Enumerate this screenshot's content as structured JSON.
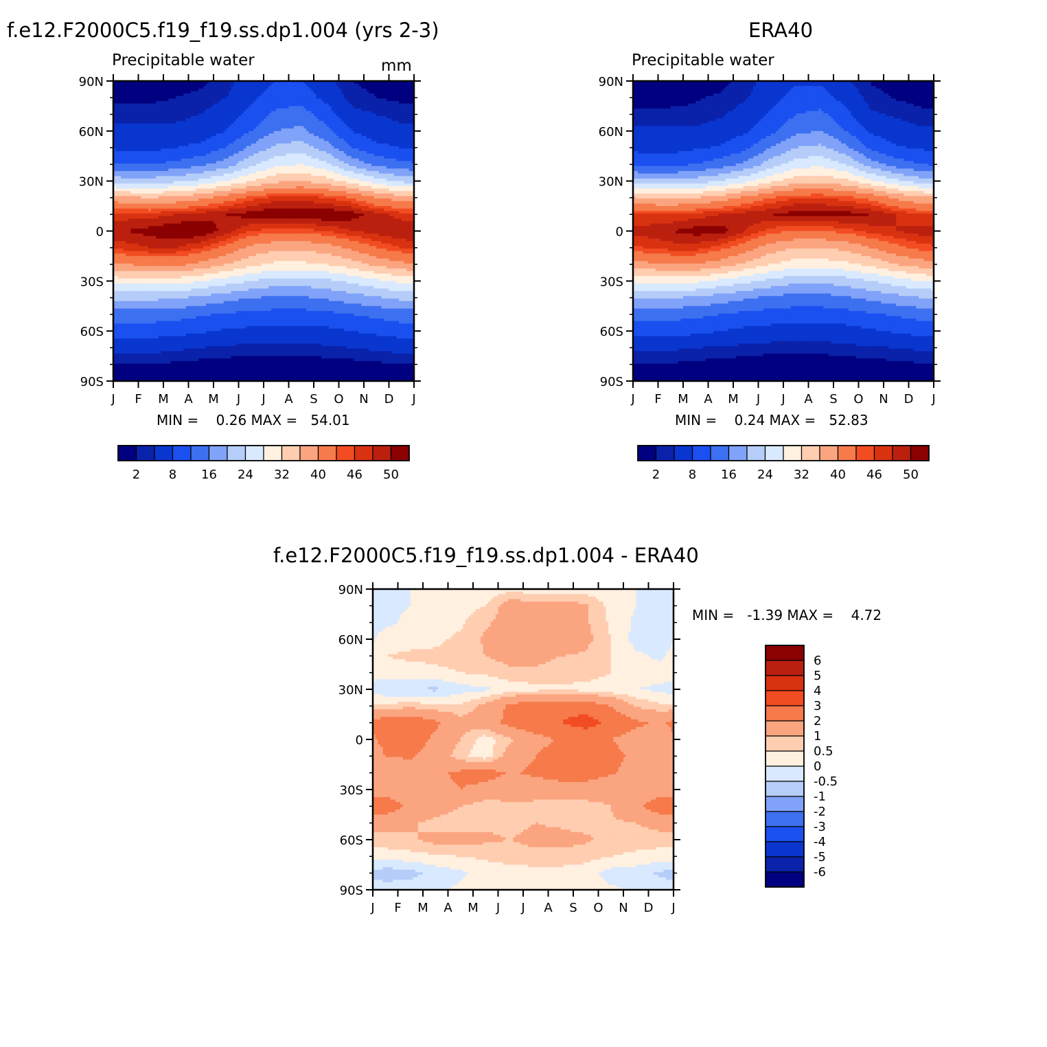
{
  "panel_model": {
    "title": "f.e12.F2000C5.f19_f19.ss.dp1.004 (yrs 2-3)",
    "left_string": "Precipitable water",
    "right_string": "mm",
    "stats": "MIN =    0.26 MAX =   54.01"
  },
  "panel_obs": {
    "title": "ERA40",
    "left_string": "Precipitable water",
    "right_string": "",
    "stats": "MIN =    0.24 MAX =   52.83"
  },
  "panel_diff": {
    "title": "f.e12.F2000C5.f19_f19.ss.dp1.004 - ERA40",
    "stats": "MIN =   -1.39 MAX =    4.72"
  },
  "colors": {
    "abs_levels": [
      "#000080",
      "#0a22aa",
      "#0a36d0",
      "#1a50f0",
      "#3d70f0",
      "#80a2f8",
      "#b5cdf8",
      "#d9e9ff",
      "#fff0e0",
      "#ffcdb0",
      "#fba580",
      "#f67a4a",
      "#f24c22",
      "#d93210",
      "#bb200f",
      "#8b0000"
    ],
    "diff_levels": [
      "#000080",
      "#0a22aa",
      "#0a36d0",
      "#1a50f0",
      "#3d70f0",
      "#80a2f8",
      "#b5cdf8",
      "#d9e9ff",
      "#fff0e0",
      "#ffcdb0",
      "#fba580",
      "#f67a4a",
      "#f24c22",
      "#d93210",
      "#bb200f",
      "#8b0000"
    ]
  },
  "chart_data": [
    {
      "type": "heatmap",
      "panel": "model",
      "title": "f.e12.F2000C5.f19_f19.ss.dp1.004 (yrs 2-3)",
      "x_ticks": [
        "J",
        "F",
        "M",
        "A",
        "M",
        "J",
        "J",
        "A",
        "S",
        "O",
        "N",
        "D",
        "J"
      ],
      "y_ticks": [
        "90N",
        "60N",
        "30N",
        "0",
        "30S",
        "60S",
        "90S"
      ],
      "ylim": [
        -90,
        90
      ],
      "min": 0.26,
      "max": 54.01,
      "colorbar_labels": [
        "2",
        "8",
        "16",
        "24",
        "32",
        "40",
        "46",
        "50"
      ],
      "contour_levels": [
        2,
        4,
        8,
        12,
        16,
        20,
        24,
        28,
        32,
        36,
        40,
        44,
        46,
        48,
        50
      ],
      "lat": [
        -90,
        -80,
        -70,
        -60,
        -50,
        -40,
        -30,
        -20,
        -10,
        0,
        10,
        20,
        30,
        40,
        50,
        60,
        70,
        80,
        90
      ],
      "months": [
        "Jan",
        "Feb",
        "Mar",
        "Apr",
        "May",
        "Jun",
        "Jul",
        "Aug",
        "Sep",
        "Oct",
        "Nov",
        "Dec"
      ],
      "values_by_lat": [
        [
          0.5,
          0.5,
          0.5,
          0.5,
          0.4,
          0.3,
          0.3,
          0.3,
          0.4,
          0.5,
          0.5,
          0.5
        ],
        [
          2,
          2,
          1.5,
          1.2,
          1,
          0.8,
          0.8,
          0.8,
          1,
          1.2,
          1.5,
          2
        ],
        [
          5,
          5,
          4.5,
          4,
          3.5,
          3,
          3,
          3,
          3.5,
          4,
          4.5,
          5
        ],
        [
          10,
          10,
          9.5,
          8.5,
          7.5,
          7,
          6.5,
          6.5,
          7,
          8,
          9,
          10
        ],
        [
          14,
          14,
          13.5,
          12.5,
          11.5,
          11,
          10.5,
          10.5,
          11,
          12,
          13,
          14
        ],
        [
          21,
          21,
          20.5,
          19,
          17.5,
          16,
          15.5,
          15.5,
          16.5,
          18,
          19.5,
          21
        ],
        [
          30,
          30,
          30,
          28,
          26,
          24,
          22,
          22,
          23,
          25,
          27,
          29
        ],
        [
          40,
          41,
          41,
          39,
          36,
          33,
          31,
          31,
          32,
          34,
          37,
          39
        ],
        [
          47,
          48,
          48,
          46,
          43,
          39,
          37,
          37,
          38,
          41,
          44,
          46
        ],
        [
          50,
          51,
          52,
          52,
          49,
          46,
          45,
          45,
          46,
          48,
          49,
          50
        ],
        [
          47,
          47,
          48,
          49,
          50,
          51,
          52,
          52,
          52,
          51,
          49,
          47
        ],
        [
          37,
          36,
          37,
          39,
          42,
          45,
          47,
          47,
          46,
          44,
          40,
          38
        ],
        [
          22,
          22,
          23,
          25,
          28,
          32,
          35,
          36,
          34,
          30,
          26,
          23
        ],
        [
          12,
          12,
          13,
          15,
          18,
          23,
          27,
          28,
          25,
          19,
          15,
          13
        ],
        [
          7,
          7,
          8,
          9,
          12,
          17,
          21,
          22,
          18,
          12,
          9,
          8
        ],
        [
          5,
          5,
          5,
          6,
          8,
          12,
          16,
          17,
          13,
          8,
          6,
          5
        ],
        [
          3,
          3,
          3,
          4,
          6,
          9,
          13,
          14,
          10,
          5,
          4,
          3
        ],
        [
          1.5,
          1.5,
          2,
          2.5,
          4,
          7,
          10,
          10,
          7,
          3,
          2,
          1.5
        ],
        [
          1,
          1,
          1.2,
          1.5,
          3,
          6,
          8,
          8,
          5,
          2,
          1.2,
          1
        ]
      ]
    },
    {
      "type": "heatmap",
      "panel": "obs",
      "title": "ERA40",
      "x_ticks": [
        "J",
        "F",
        "M",
        "A",
        "M",
        "J",
        "J",
        "A",
        "S",
        "O",
        "N",
        "D",
        "J"
      ],
      "y_ticks": [
        "90N",
        "60N",
        "30N",
        "0",
        "30S",
        "60S",
        "90S"
      ],
      "ylim": [
        -90,
        90
      ],
      "min": 0.24,
      "max": 52.83,
      "colorbar_labels": [
        "2",
        "8",
        "16",
        "24",
        "32",
        "40",
        "46",
        "50"
      ],
      "contour_levels": [
        2,
        4,
        8,
        12,
        16,
        20,
        24,
        28,
        32,
        36,
        40,
        44,
        46,
        48,
        50
      ],
      "lat": [
        -90,
        -80,
        -70,
        -60,
        -50,
        -40,
        -30,
        -20,
        -10,
        0,
        10,
        20,
        30,
        40,
        50,
        60,
        70,
        80,
        90
      ],
      "months": [
        "Jan",
        "Feb",
        "Mar",
        "Apr",
        "May",
        "Jun",
        "Jul",
        "Aug",
        "Sep",
        "Oct",
        "Nov",
        "Dec"
      ],
      "values_by_lat": [
        [
          0.4,
          0.4,
          0.4,
          0.4,
          0.3,
          0.3,
          0.3,
          0.3,
          0.3,
          0.4,
          0.4,
          0.4
        ],
        [
          1.8,
          1.8,
          1.4,
          1.1,
          0.9,
          0.7,
          0.7,
          0.7,
          0.9,
          1.1,
          1.4,
          1.8
        ],
        [
          4.5,
          4.5,
          4,
          3.6,
          3.2,
          2.8,
          2.8,
          2.8,
          3.2,
          3.6,
          4,
          4.5
        ],
        [
          9.5,
          9.5,
          9,
          8,
          7,
          6.5,
          6,
          6,
          6.5,
          7.5,
          8.5,
          9.5
        ],
        [
          13.5,
          13.5,
          13,
          12,
          11,
          10.5,
          10,
          10,
          10.5,
          11.5,
          12.5,
          13.5
        ],
        [
          20,
          20,
          19.5,
          18,
          16.5,
          15,
          14.5,
          14.5,
          15.5,
          17,
          18.5,
          20
        ],
        [
          29,
          29,
          29,
          27,
          25,
          23,
          21,
          21,
          22,
          24,
          26,
          28
        ],
        [
          39,
          40,
          40,
          38,
          35,
          32,
          30,
          30,
          31,
          33,
          36,
          38
        ],
        [
          46,
          47,
          47,
          45,
          42,
          38,
          36,
          36,
          37,
          40,
          43,
          45
        ],
        [
          49,
          50,
          51,
          51,
          48,
          45,
          44,
          44,
          45,
          47,
          48,
          49
        ],
        [
          46,
          46,
          47,
          48,
          49,
          50,
          51,
          51,
          51,
          50,
          48,
          46
        ],
        [
          36,
          35,
          36,
          38,
          41,
          44,
          46,
          46,
          45,
          43,
          39,
          37
        ],
        [
          21,
          21,
          22,
          24,
          27,
          31,
          34,
          35,
          33,
          29,
          25,
          22
        ],
        [
          11,
          11,
          12,
          14,
          17,
          22,
          26,
          27,
          24,
          18,
          14,
          12
        ],
        [
          6.5,
          6.5,
          7.5,
          8.5,
          11,
          16,
          20,
          21,
          17,
          11,
          8.5,
          7.5
        ],
        [
          4.5,
          4.5,
          4.5,
          5.5,
          7.5,
          11,
          15,
          16,
          12,
          7.5,
          5.5,
          4.5
        ],
        [
          2.5,
          2.5,
          2.5,
          3.5,
          5.5,
          8.5,
          12,
          13,
          9,
          4.5,
          3.5,
          2.5
        ],
        [
          1.3,
          1.3,
          1.8,
          2.3,
          3.7,
          6.5,
          9.5,
          9.5,
          6.5,
          2.8,
          1.8,
          1.3
        ],
        [
          0.9,
          0.9,
          1.1,
          1.4,
          2.8,
          5.5,
          7.5,
          7.5,
          4.5,
          1.8,
          1.1,
          0.9
        ]
      ]
    },
    {
      "type": "heatmap",
      "panel": "diff",
      "title": "f.e12.F2000C5.f19_f19.ss.dp1.004 - ERA40",
      "x_ticks": [
        "J",
        "F",
        "M",
        "A",
        "M",
        "J",
        "J",
        "A",
        "S",
        "O",
        "N",
        "D",
        "J"
      ],
      "y_ticks": [
        "90N",
        "60N",
        "30N",
        "0",
        "30S",
        "60S",
        "90S"
      ],
      "ylim": [
        -90,
        90
      ],
      "min": -1.39,
      "max": 4.72,
      "colorbar_labels": [
        "6",
        "5",
        "4",
        "3",
        "2",
        "1",
        "0.5",
        "0",
        "-0.5",
        "-1",
        "-2",
        "-3",
        "-4",
        "-5",
        "-6"
      ],
      "contour_levels": [
        -6,
        -5,
        -4,
        -3,
        -2,
        -1,
        -0.5,
        0,
        0.5,
        1,
        2,
        3,
        4,
        5,
        6
      ],
      "lat": [
        -90,
        -80,
        -70,
        -60,
        -50,
        -40,
        -30,
        -20,
        -10,
        0,
        10,
        20,
        30,
        40,
        50,
        60,
        70,
        80,
        90
      ],
      "months": [
        "Jan",
        "Feb",
        "Mar",
        "Apr",
        "May",
        "Jun",
        "Jul",
        "Aug",
        "Sep",
        "Oct",
        "Nov",
        "Dec"
      ],
      "values_by_lat": [
        [
          -0.2,
          -0.2,
          -0.1,
          0.1,
          0.2,
          0.2,
          0.2,
          0.2,
          0.2,
          0.1,
          -0.1,
          -0.2
        ],
        [
          -0.8,
          -0.7,
          -0.3,
          -0.1,
          0.2,
          0.3,
          0.3,
          0.3,
          0.2,
          -0.2,
          -0.3,
          -0.6
        ],
        [
          0.2,
          0.3,
          0.4,
          0.5,
          0.6,
          0.7,
          0.8,
          0.8,
          0.7,
          0.5,
          0.4,
          0.3
        ],
        [
          0.8,
          0.9,
          1.2,
          1.3,
          1.1,
          1.0,
          1.2,
          1.2,
          1.1,
          0.8,
          0.7,
          0.7
        ],
        [
          1.3,
          1.1,
          0.8,
          0.7,
          0.9,
          0.8,
          1.0,
          0.9,
          0.8,
          0.9,
          1.0,
          1.3
        ],
        [
          2.6,
          1.8,
          1.4,
          1.0,
          0.6,
          0.9,
          0.8,
          0.6,
          0.7,
          1.0,
          1.8,
          2.6
        ],
        [
          1.6,
          1.2,
          1.7,
          2.0,
          1.7,
          1.3,
          1.4,
          1.5,
          1.6,
          1.4,
          1.4,
          1.5
        ],
        [
          1.4,
          1.6,
          1.8,
          2.2,
          2.4,
          1.9,
          2.2,
          2.5,
          2.4,
          2.1,
          1.6,
          1.2
        ],
        [
          2.0,
          2.1,
          1.6,
          0.6,
          0.2,
          1.4,
          2.0,
          2.6,
          2.6,
          2.3,
          1.8,
          1.0
        ],
        [
          2.3,
          2.5,
          1.8,
          1.0,
          0.2,
          0.9,
          1.6,
          2.1,
          2.3,
          2.0,
          1.6,
          1.4
        ],
        [
          2.7,
          2.8,
          2.2,
          1.2,
          1.4,
          2.4,
          2.8,
          3.0,
          3.4,
          2.8,
          2.2,
          1.8
        ],
        [
          0.6,
          0.8,
          0.6,
          0.6,
          1.2,
          2.2,
          2.8,
          2.7,
          2.6,
          2.0,
          0.9,
          0.6
        ],
        [
          -0.4,
          -0.5,
          -0.6,
          -0.2,
          -0.1,
          0.2,
          0.3,
          0.4,
          0.3,
          0.1,
          0.0,
          -0.1
        ],
        [
          0.3,
          0.3,
          0.4,
          0.5,
          0.6,
          0.8,
          0.9,
          0.7,
          0.8,
          0.5,
          0.2,
          0.2
        ],
        [
          0.5,
          0.6,
          0.6,
          0.7,
          1.0,
          1.3,
          1.2,
          1.0,
          0.9,
          0.5,
          0.1,
          -0.1
        ],
        [
          0.2,
          0.3,
          0.4,
          0.6,
          1.1,
          1.6,
          1.9,
          1.7,
          1.2,
          0.5,
          -0.2,
          -0.3
        ],
        [
          -0.1,
          0.1,
          0.3,
          0.4,
          0.9,
          1.3,
          1.5,
          1.5,
          1.1,
          0.4,
          -0.1,
          -0.2
        ],
        [
          -0.1,
          0.0,
          0.2,
          0.3,
          0.5,
          1.4,
          1.3,
          1.3,
          1.1,
          0.3,
          0.0,
          -0.1
        ],
        [
          0.0,
          0.0,
          0.1,
          0.2,
          0.2,
          0.3,
          0.2,
          0.2,
          0.2,
          0.1,
          0.0,
          0.0
        ]
      ]
    }
  ]
}
